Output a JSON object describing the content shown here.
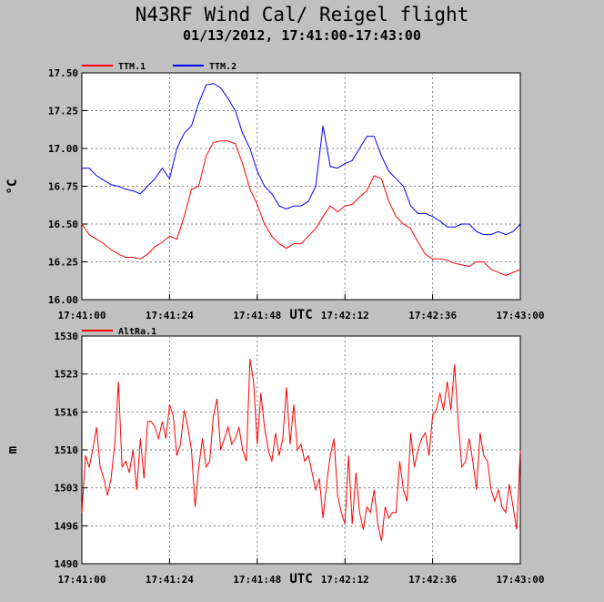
{
  "chart_data": [
    {
      "type": "line",
      "title": "N43RF Wind Cal/ Reigel flight",
      "subtitle": "01/13/2012, 17:41:00-17:43:00",
      "ylabel": "°C",
      "xlabel": "UTC",
      "ylim": [
        16.0,
        17.5
      ],
      "yticks": [
        "17.50",
        "17.25",
        "17.00",
        "16.75",
        "16.50",
        "16.25",
        "16.00"
      ],
      "xticks": [
        "17:41:00",
        "17:41:24",
        "17:41:48",
        "17:42:12",
        "17:42:36",
        "17:43:00"
      ],
      "xrange_seconds": [
        0,
        120
      ],
      "legend": "top-left",
      "grid": true,
      "series": [
        {
          "name": "TTM.1",
          "color": "#ff0000",
          "x": [
            0,
            2,
            4,
            6,
            8,
            10,
            12,
            14,
            16,
            18,
            20,
            22,
            24,
            26,
            28,
            30,
            32,
            34,
            36,
            38,
            40,
            42,
            44,
            46,
            48,
            50,
            52,
            54,
            56,
            58,
            60,
            62,
            64,
            66,
            68,
            70,
            72,
            74,
            76,
            78,
            80,
            82,
            84,
            86,
            88,
            90,
            92,
            94,
            96,
            98,
            100,
            102,
            104,
            106,
            108,
            110,
            112,
            114,
            116,
            118,
            120
          ],
          "y": [
            16.5,
            16.43,
            16.4,
            16.37,
            16.33,
            16.3,
            16.28,
            16.28,
            16.27,
            16.3,
            16.35,
            16.38,
            16.42,
            16.4,
            16.55,
            16.73,
            16.75,
            16.95,
            17.04,
            17.05,
            17.05,
            17.03,
            16.9,
            16.73,
            16.63,
            16.5,
            16.42,
            16.37,
            16.34,
            16.37,
            16.37,
            16.42,
            16.47,
            16.55,
            16.62,
            16.58,
            16.62,
            16.63,
            16.68,
            16.72,
            16.82,
            16.8,
            16.65,
            16.55,
            16.5,
            16.47,
            16.38,
            16.3,
            16.27,
            16.27,
            16.26,
            16.24,
            16.23,
            16.22,
            16.25,
            16.25,
            16.2,
            16.18,
            16.16,
            16.18,
            16.2
          ]
        },
        {
          "name": "TTM.2",
          "color": "#0000ff",
          "x": [
            0,
            2,
            4,
            6,
            8,
            10,
            12,
            14,
            16,
            18,
            20,
            22,
            24,
            26,
            28,
            30,
            32,
            34,
            36,
            38,
            40,
            42,
            44,
            46,
            48,
            50,
            52,
            54,
            56,
            58,
            60,
            62,
            64,
            66,
            68,
            70,
            72,
            74,
            76,
            78,
            80,
            82,
            84,
            86,
            88,
            90,
            92,
            94,
            96,
            98,
            100,
            102,
            104,
            106,
            108,
            110,
            112,
            114,
            116,
            118,
            120
          ],
          "y": [
            16.87,
            16.87,
            16.82,
            16.79,
            16.76,
            16.75,
            16.73,
            16.72,
            16.7,
            16.75,
            16.8,
            16.87,
            16.8,
            17.0,
            17.1,
            17.15,
            17.3,
            17.42,
            17.43,
            17.4,
            17.33,
            17.25,
            17.1,
            17.0,
            16.85,
            16.75,
            16.7,
            16.62,
            16.6,
            16.62,
            16.62,
            16.65,
            16.75,
            17.15,
            16.88,
            16.87,
            16.9,
            16.92,
            17.0,
            17.08,
            17.08,
            16.95,
            16.85,
            16.8,
            16.75,
            16.62,
            16.57,
            16.57,
            16.55,
            16.52,
            16.48,
            16.48,
            16.5,
            16.5,
            16.45,
            16.43,
            16.43,
            16.45,
            16.43,
            16.45,
            16.5
          ]
        }
      ]
    },
    {
      "type": "line",
      "ylabel": "m",
      "xlabel": "UTC",
      "ylim": [
        1490,
        1530
      ],
      "yticks": [
        "1530",
        "1523",
        "1516",
        "1510",
        "1503",
        "1496",
        "1490"
      ],
      "xticks": [
        "17:41:00",
        "17:41:24",
        "17:41:48",
        "17:42:12",
        "17:42:36",
        "17:43:00"
      ],
      "xrange_seconds": [
        0,
        120
      ],
      "legend": "top-left",
      "grid": true,
      "series": [
        {
          "name": "AltRa.1",
          "color": "#ff0000",
          "x": [
            0,
            1,
            2,
            3,
            4,
            5,
            6,
            7,
            8,
            9,
            10,
            11,
            12,
            13,
            14,
            15,
            16,
            17,
            18,
            19,
            20,
            21,
            22,
            23,
            24,
            25,
            26,
            27,
            28,
            29,
            30,
            31,
            32,
            33,
            34,
            35,
            36,
            37,
            38,
            39,
            40,
            41,
            42,
            43,
            44,
            45,
            46,
            47,
            48,
            49,
            50,
            51,
            52,
            53,
            54,
            55,
            56,
            57,
            58,
            59,
            60,
            61,
            62,
            63,
            64,
            65,
            66,
            67,
            68,
            69,
            70,
            71,
            72,
            73,
            74,
            75,
            76,
            77,
            78,
            79,
            80,
            81,
            82,
            83,
            84,
            85,
            86,
            87,
            88,
            89,
            90,
            91,
            92,
            93,
            94,
            95,
            96,
            97,
            98,
            99,
            100,
            101,
            102,
            103,
            104,
            105,
            106,
            107,
            108,
            109,
            110,
            111,
            112,
            113,
            114,
            115,
            116,
            117,
            118,
            119,
            120
          ],
          "y": [
            1499,
            1509,
            1507,
            1510,
            1514,
            1507,
            1505,
            1502,
            1505,
            1511,
            1522,
            1507,
            1508,
            1506,
            1510,
            1503,
            1512,
            1505,
            1515,
            1515,
            1514,
            1512,
            1515,
            1512,
            1518,
            1516,
            1509,
            1511,
            1517,
            1514,
            1510,
            1500,
            1507,
            1512,
            1507,
            1508,
            1516,
            1519,
            1510,
            1512,
            1514,
            1511,
            1512,
            1514,
            1510,
            1508,
            1526,
            1522,
            1511,
            1520,
            1514,
            1510,
            1508,
            1513,
            1509,
            1512,
            1521,
            1511,
            1518,
            1510,
            1511,
            1508,
            1509,
            1506,
            1503,
            1505,
            1498,
            1504,
            1509,
            1512,
            1502,
            1499,
            1497,
            1509,
            1497,
            1506,
            1499,
            1496,
            1500,
            1499,
            1503,
            1497,
            1494,
            1500,
            1498,
            1499,
            1499,
            1508,
            1503,
            1501,
            1513,
            1507,
            1510,
            1512,
            1513,
            1509,
            1516,
            1517,
            1520,
            1517,
            1522,
            1517,
            1525,
            1515,
            1507,
            1508,
            1512,
            1508,
            1503,
            1513,
            1509,
            1508,
            1503,
            1501,
            1503,
            1500,
            1499,
            1504,
            1500,
            1496,
            1510
          ]
        }
      ]
    }
  ]
}
